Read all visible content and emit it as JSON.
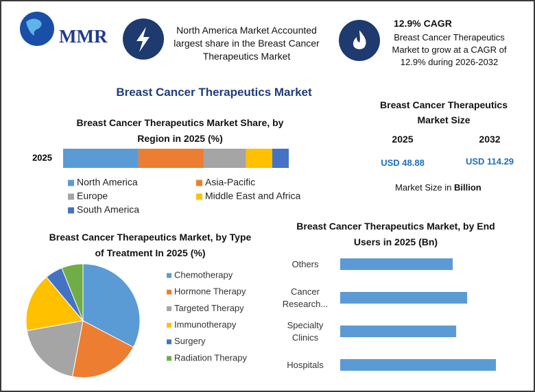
{
  "header": {
    "logo": "MMR",
    "highlight_1": "North America Market Accounted largest share in the Breast Cancer Therapeutics Market",
    "highlight_2_title": "12.9% CAGR",
    "highlight_2_text": "Breast Cancer Therapeutics Market to grow at a CAGR of 12.9% during 2026-2032",
    "main_title": "Breast Cancer Therapeutics Market"
  },
  "market_size": {
    "title": "Breast Cancer Therapeutics Market Size",
    "years": [
      "2025",
      "2032"
    ],
    "values": [
      "USD 48.88",
      "USD 114.29"
    ],
    "note": "Market Size in",
    "note_unit": "Billion"
  },
  "chart_data": [
    {
      "type": "bar",
      "orientation": "horizontal",
      "stacked": true,
      "title": "Breast Cancer Therapeutics Market Share, by Region in 2025 (%)",
      "categories": [
        "2025"
      ],
      "series": [
        {
          "name": "North America",
          "color": "#5b9bd5",
          "values": [
            33.4
          ]
        },
        {
          "name": "Asia-Pacific",
          "color": "#ed7d31",
          "values": [
            28.9
          ]
        },
        {
          "name": "Europe",
          "color": "#a5a5a5",
          "values": [
            18.8
          ]
        },
        {
          "name": "Middle East and Africa",
          "color": "#ffc000",
          "values": [
            11.6
          ]
        },
        {
          "name": "South America",
          "color": "#4472c4",
          "values": [
            7.3
          ]
        }
      ]
    },
    {
      "type": "pie",
      "title": "Breast Cancer Therapeutics Market, by Type of Treatment In 2025 (%)",
      "categories": [
        "Chemotherapy",
        "Hormone Therapy",
        "Targeted Therapy",
        "Immunotherapy",
        "Surgery",
        "Radiation Therapy"
      ],
      "values": [
        32.7,
        20.3,
        19.2,
        16.7,
        5.0,
        6.1
      ],
      "colors": [
        "#5b9bd5",
        "#ed7d31",
        "#a5a5a5",
        "#ffc000",
        "#4472c4",
        "#70ad47"
      ]
    },
    {
      "type": "bar",
      "orientation": "horizontal",
      "stacked": false,
      "title": "Breast Cancer Therapeutics Market, by End Users in 2025 (Bn)",
      "categories": [
        "Others",
        "Cancer Research...",
        "Specialty Clinics",
        "Hospitals"
      ],
      "values": [
        10.76,
        12.14,
        11.09,
        14.89
      ],
      "color": "#5b9bd5"
    }
  ]
}
